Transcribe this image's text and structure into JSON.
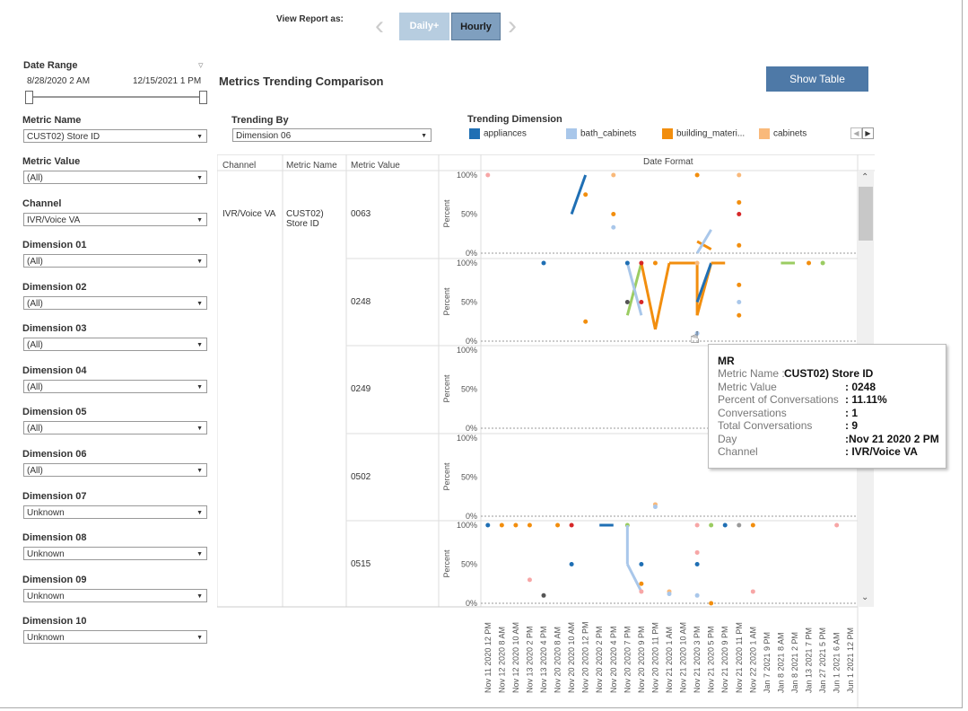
{
  "header": {
    "view_report_as": "View Report as:",
    "tab_daily": "Daily+",
    "tab_hourly": "Hourly"
  },
  "title": "Metrics Trending Comparison",
  "show_table": "Show Table",
  "date_range": {
    "label": "Date Range",
    "start": "8/28/2020 2 AM",
    "end": "12/15/2021 1 PM"
  },
  "filters": [
    {
      "label": "Metric Name",
      "value": "CUST02) Store ID"
    },
    {
      "label": "Metric Value",
      "value": "(All)"
    },
    {
      "label": "Channel",
      "value": "IVR/Voice VA"
    },
    {
      "label": "Dimension 01",
      "value": "(All)"
    },
    {
      "label": "Dimension 02",
      "value": "(All)"
    },
    {
      "label": "Dimension 03",
      "value": "(All)"
    },
    {
      "label": "Dimension 04",
      "value": "(All)"
    },
    {
      "label": "Dimension 05",
      "value": "(All)"
    },
    {
      "label": "Dimension 06",
      "value": "(All)"
    },
    {
      "label": "Dimension 07",
      "value": "Unknown"
    },
    {
      "label": "Dimension 08",
      "value": "Unknown"
    },
    {
      "label": "Dimension 09",
      "value": "Unknown"
    },
    {
      "label": "Dimension 10",
      "value": "Unknown"
    }
  ],
  "trending_by": {
    "label": "Trending By",
    "value": "Dimension 06"
  },
  "trending_dimension": {
    "label": "Trending Dimension",
    "items": [
      {
        "name": "appliances",
        "color": "#1f6fb4"
      },
      {
        "name": "bath_cabinets",
        "color": "#a9c7ea"
      },
      {
        "name": "building_materi...",
        "color": "#f28e0e"
      },
      {
        "name": "cabinets",
        "color": "#f9b97a"
      }
    ]
  },
  "table": {
    "headers": {
      "channel": "Channel",
      "metric_name": "Metric Name",
      "metric_value": "Metric Value",
      "date_format": "Date Format"
    },
    "channel": "IVR/Voice VA",
    "metric_name": "CUST02) Store ID",
    "rows": [
      "0063",
      "0248",
      "0249",
      "0502",
      "0515"
    ],
    "axis_title": "Percent",
    "y_ticks": [
      "100%",
      "50%",
      "0%"
    ]
  },
  "x_labels": [
    "Nov 11 2020 12 PM",
    "Nov 12 2020 8 AM",
    "Nov 12 2020 10 AM",
    "Nov 13 2020 2 PM",
    "Nov 13 2020 4 PM",
    "Nov 20 2020 8 AM",
    "Nov 20 2020 10 AM",
    "Nov 20 2020 12 PM",
    "Nov 20 2020 2 PM",
    "Nov 20 2020 4 PM",
    "Nov 20 2020 7 PM",
    "Nov 20 2020 9 PM",
    "Nov 20 2020 11 PM",
    "Nov 21 2020 1 AM",
    "Nov 21 2020 10 AM",
    "Nov 21 2020 3 PM",
    "Nov 21 2020 5 PM",
    "Nov 21 2020 9 PM",
    "Nov 21 2020 11 PM",
    "Nov 22 2020 1 AM",
    "Jan 7 2021 9 PM",
    "Jan 8 2021 8 AM",
    "Jan 8 2021 2 PM",
    "Jan 13 2021 7 PM",
    "Jan 27 2021 5 PM",
    "Jun 1 2021 6 AM",
    "Jun 1 2021 12 PM"
  ],
  "tooltip": {
    "title": "MR",
    "rows": [
      {
        "label": "Metric Name :",
        "value": "CUST02) Store ID"
      },
      {
        "label": "Metric Value",
        "value": ": 0248"
      },
      {
        "label": "Percent of Conversations",
        "value": ": 11.11%"
      },
      {
        "label": "Conversations",
        "value": ": 1"
      },
      {
        "label": "Total Conversations",
        "value": ": 9"
      },
      {
        "label": "Day",
        "value": ":Nov 21 2020 2 PM"
      },
      {
        "label": "Channel",
        "value": ": IVR/Voice VA"
      }
    ]
  },
  "colors": {
    "accent": "#4e79a7",
    "tab_active": "#7f9fbf",
    "tab_inactive": "#b7cde0"
  }
}
